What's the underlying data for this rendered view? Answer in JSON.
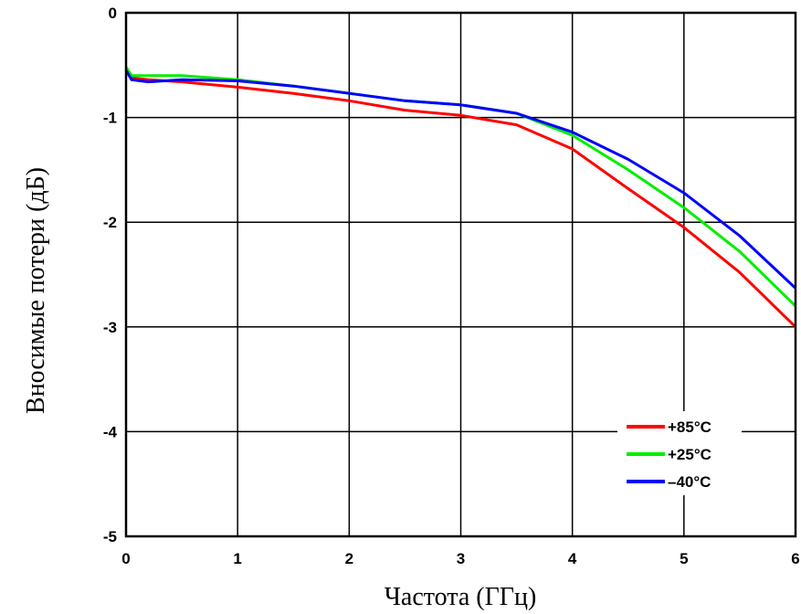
{
  "chart_data": {
    "type": "line",
    "xlabel": "Частота (ГГц)",
    "ylabel": "Вносимые потери (дБ)",
    "xlim": [
      0,
      6
    ],
    "ylim": [
      -5,
      0
    ],
    "x_ticks": [
      "0",
      "1",
      "2",
      "3",
      "4",
      "5",
      "6"
    ],
    "y_ticks": [
      "0",
      "-1",
      "-2",
      "-3",
      "-4",
      "-5"
    ],
    "grid": true,
    "legend_position": "bottom-right",
    "series": [
      {
        "name": "+85°C",
        "color": "#ff0000",
        "x": [
          0,
          0.05,
          0.2,
          0.5,
          1.0,
          1.5,
          2.0,
          2.5,
          3.0,
          3.5,
          4.0,
          4.5,
          5.0,
          5.5,
          6.0
        ],
        "y": [
          -0.52,
          -0.62,
          -0.64,
          -0.66,
          -0.71,
          -0.77,
          -0.84,
          -0.93,
          -0.98,
          -1.07,
          -1.3,
          -1.68,
          -2.05,
          -2.48,
          -3.0
        ]
      },
      {
        "name": "+25°C",
        "color": "#00ee00",
        "x": [
          0,
          0.05,
          0.2,
          0.5,
          1.0,
          1.5,
          2.0,
          2.5,
          3.0,
          3.5,
          4.0,
          4.5,
          5.0,
          5.5,
          6.0
        ],
        "y": [
          -0.52,
          -0.6,
          -0.6,
          -0.6,
          -0.64,
          -0.7,
          -0.77,
          -0.84,
          -0.88,
          -0.96,
          -1.17,
          -1.5,
          -1.86,
          -2.28,
          -2.8
        ]
      },
      {
        "name": "–40°C",
        "color": "#0000ff",
        "x": [
          0,
          0.05,
          0.2,
          0.5,
          1.0,
          1.5,
          2.0,
          2.5,
          3.0,
          3.5,
          4.0,
          4.5,
          5.0,
          5.5,
          6.0
        ],
        "y": [
          -0.55,
          -0.64,
          -0.66,
          -0.64,
          -0.65,
          -0.7,
          -0.77,
          -0.84,
          -0.88,
          -0.96,
          -1.14,
          -1.4,
          -1.72,
          -2.13,
          -2.63
        ]
      }
    ]
  }
}
